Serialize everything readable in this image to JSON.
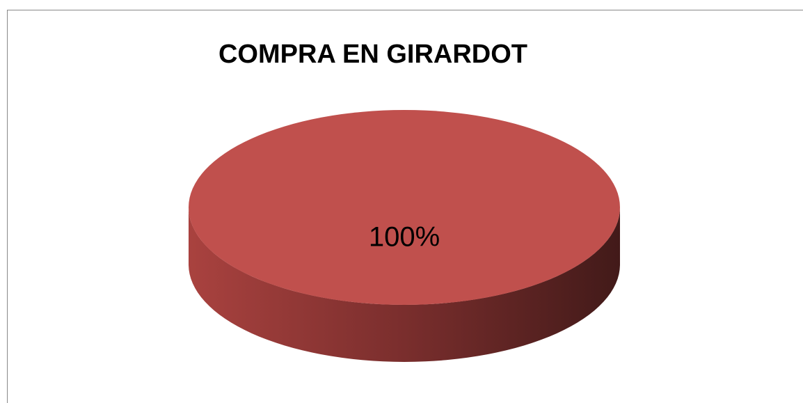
{
  "chart_data": {
    "type": "pie",
    "title": "COMPRA EN GIRARDOT",
    "values": [
      100
    ],
    "value_labels": [
      "100%"
    ],
    "colors": [
      "#c0504d"
    ]
  }
}
